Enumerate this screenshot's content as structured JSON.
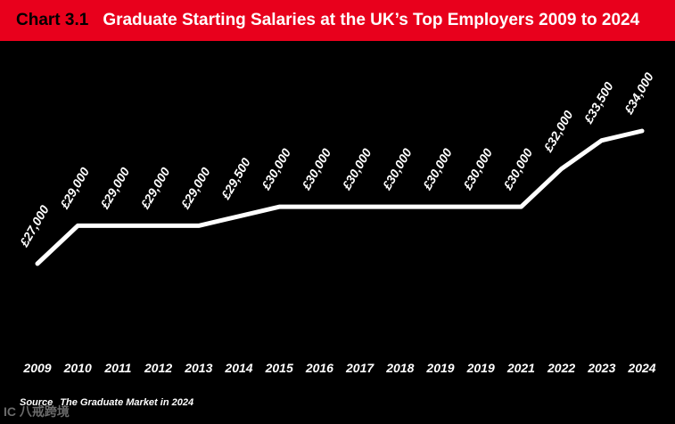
{
  "header": {
    "chart_number": "Chart 3.1",
    "title": "Graduate Starting Salaries at the UK’s Top Employers 2009 to 2024"
  },
  "footer": {
    "source_label": "Source",
    "source_text": "The Graduate Market in 2024"
  },
  "watermark": {
    "text": "IC 八戒跨境"
  },
  "colors": {
    "header_bg": "#e8001c",
    "background": "#000000",
    "line": "#ffffff",
    "text": "#ffffff"
  },
  "chart_data": {
    "type": "line",
    "title": "Graduate Starting Salaries at the UK’s Top Employers 2009 to 2024",
    "categories": [
      "2009",
      "2010",
      "2011",
      "2012",
      "2013",
      "2014",
      "2015",
      "2016",
      "2017",
      "2018",
      "2019",
      "2019",
      "2021",
      "2022",
      "2023",
      "2024"
    ],
    "series": [
      {
        "values": [
          27000,
          29000,
          29000,
          29000,
          29000,
          29500,
          30000,
          30000,
          30000,
          30000,
          30000,
          30000,
          30000,
          32000,
          33500,
          34000
        ]
      }
    ],
    "data_labels": [
      "£27,000",
      "£29,000",
      "£29,000",
      "£29,000",
      "£29,000",
      "£29,500",
      "£30,000",
      "£30,000",
      "£30,000",
      "£30,000",
      "£30,000",
      "£30,000",
      "£30,000",
      "£32,000",
      "£33,500",
      "£34,000"
    ],
    "xlabel": "",
    "ylabel": "",
    "ylim": [
      26000,
      35000
    ],
    "grid": false,
    "legend": "none"
  }
}
